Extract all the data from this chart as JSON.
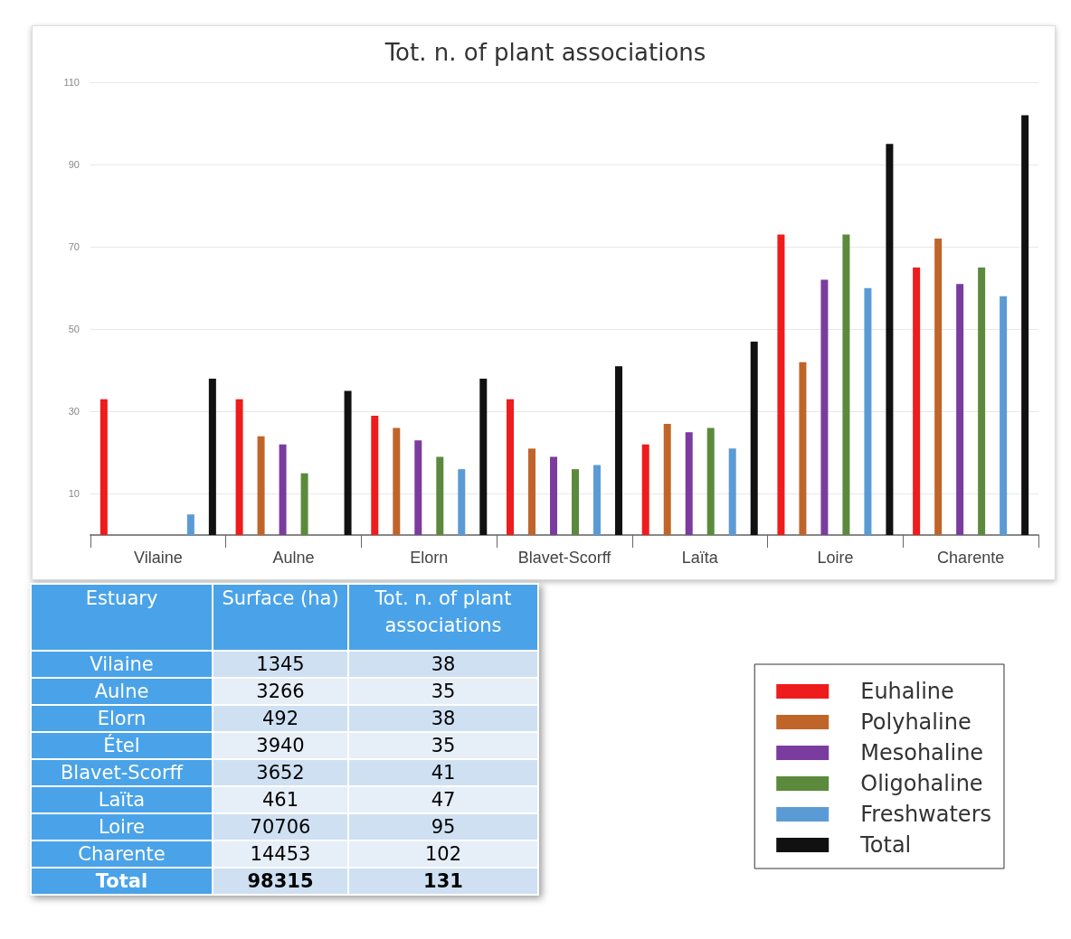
{
  "chart_data": [
    {
      "type": "bar",
      "title": "Tot. n. of plant associations",
      "categories": [
        "Vilaine",
        "Aulne",
        "Elorn",
        "Blavet-Scorff",
        "Laïta",
        "Loire",
        "Charente"
      ],
      "series": [
        {
          "name": "Euhaline",
          "color": "#ee1c1c",
          "values": [
            33,
            33,
            29,
            33,
            22,
            73,
            65
          ]
        },
        {
          "name": "Polyhaline",
          "color": "#c0652a",
          "values": [
            null,
            24,
            26,
            21,
            27,
            42,
            72
          ]
        },
        {
          "name": "Mesohaline",
          "color": "#7a3c9e",
          "values": [
            null,
            22,
            23,
            19,
            25,
            62,
            61
          ]
        },
        {
          "name": "Oligohaline",
          "color": "#5b8a3c",
          "values": [
            null,
            15,
            19,
            16,
            26,
            73,
            65
          ]
        },
        {
          "name": "Freshwaters",
          "color": "#5b9bd5",
          "values": [
            5,
            null,
            16,
            17,
            21,
            60,
            58
          ]
        },
        {
          "name": "Total",
          "color": "#111111",
          "values": [
            38,
            35,
            38,
            41,
            47,
            95,
            102
          ]
        }
      ],
      "ylim": [
        0,
        110
      ],
      "yticks": [
        10,
        30,
        50,
        70,
        90,
        110
      ],
      "grid": "y",
      "legend": "bottom right"
    },
    {
      "type": "other",
      "xlabel": "Estuary",
      "categories": [
        "Vilaine",
        "Aulne",
        "Elorn",
        "Étel",
        "Blavet-Scorff",
        "Laïta",
        "Loire",
        "Charente",
        "Total"
      ],
      "series": [
        {
          "name": "Surface (ha)",
          "values": [
            1345,
            3266,
            492,
            3940,
            3652,
            461,
            70706,
            14453,
            98315
          ],
          "colors": [
            "#cfe0f3",
            "#e6eef8",
            "#cfe0f3",
            "#e6eef8",
            "#cfe0f3",
            "#e6eef8",
            "#cfe0f3",
            "#e6eef8",
            "#cfe0f3"
          ]
        },
        {
          "name": "Tot. n. of plant associations",
          "values": [
            38,
            35,
            38,
            35,
            41,
            47,
            95,
            102,
            131
          ],
          "colors": [
            "#cfe0f3",
            "#e6eef8",
            "#cfe0f3",
            "#e6eef8",
            "#cfe0f3",
            "#e6eef8",
            "#cfe0f3",
            "#e6eef8",
            "#cfe0f3"
          ]
        }
      ],
      "data_labels": true
    }
  ]
}
